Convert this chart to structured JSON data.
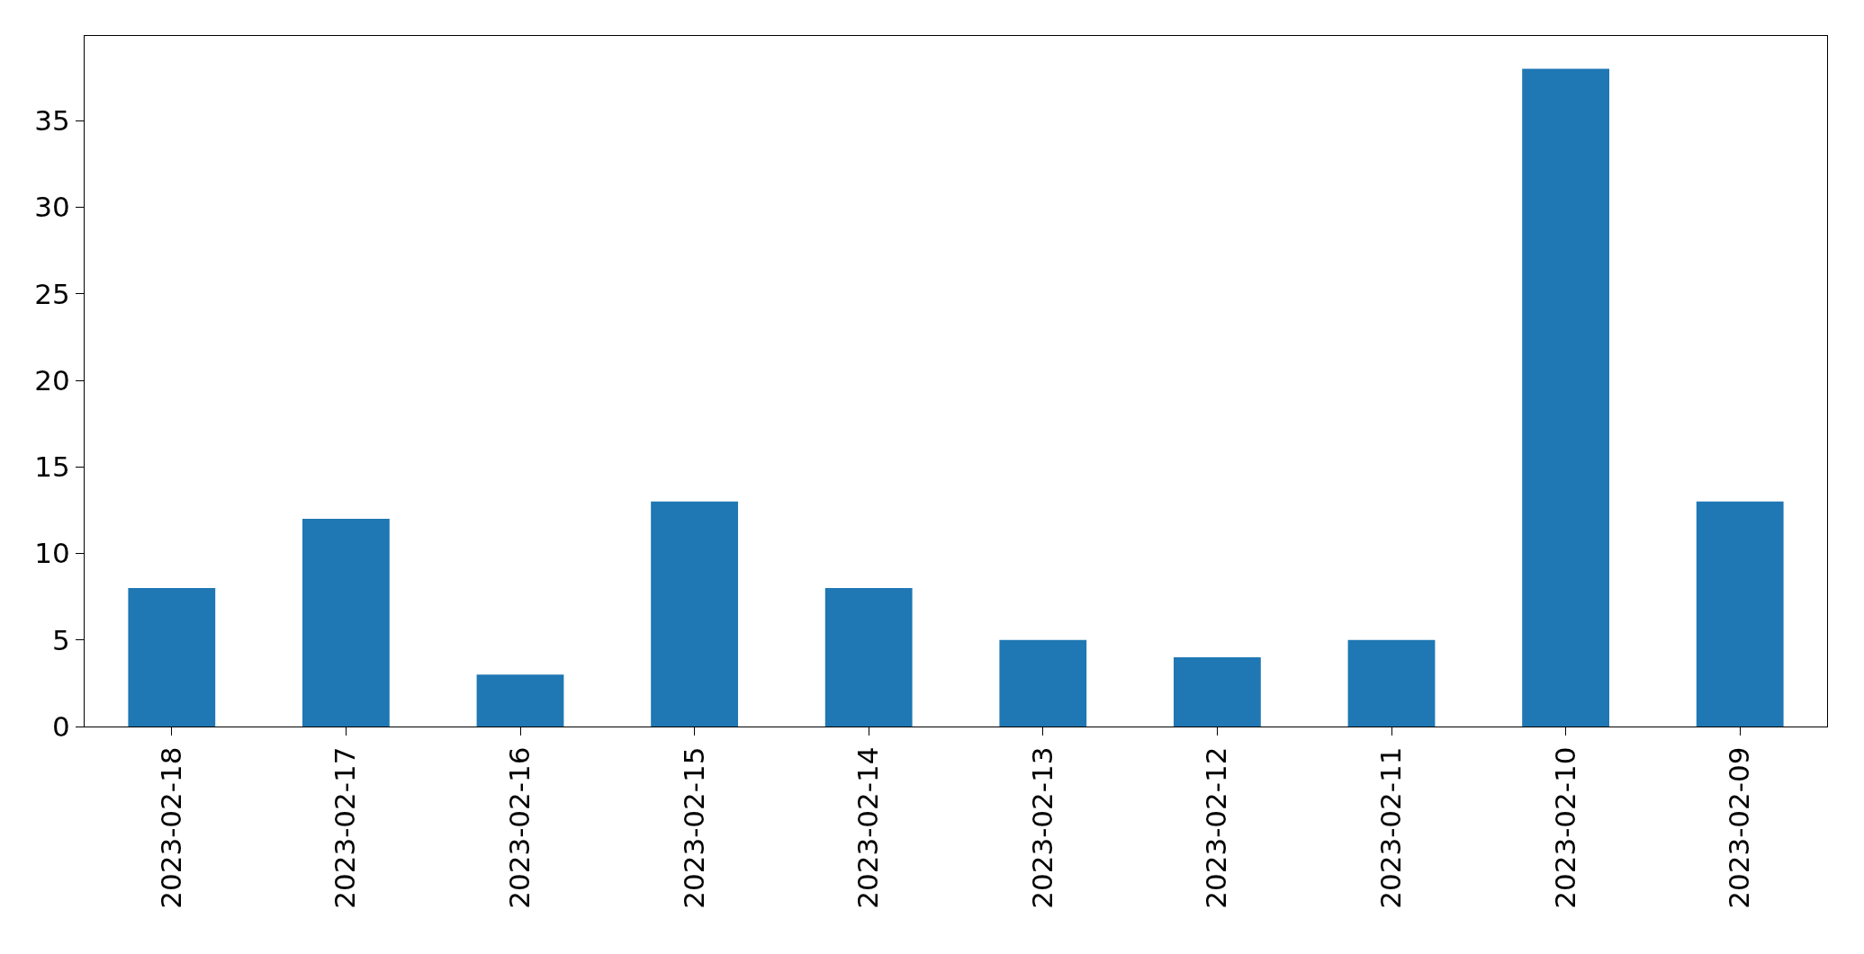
{
  "chart_data": {
    "type": "bar",
    "categories": [
      "2023-02-18",
      "2023-02-17",
      "2023-02-16",
      "2023-02-15",
      "2023-02-14",
      "2023-02-13",
      "2023-02-12",
      "2023-02-11",
      "2023-02-10",
      "2023-02-09"
    ],
    "values": [
      8,
      12,
      3,
      13,
      8,
      5,
      4,
      5,
      38,
      13
    ],
    "color": "#1f77b4",
    "ylim": [
      0,
      39.9
    ],
    "yticks": [
      0,
      5,
      10,
      15,
      20,
      25,
      30,
      35
    ],
    "grid": false,
    "legend": false
  }
}
